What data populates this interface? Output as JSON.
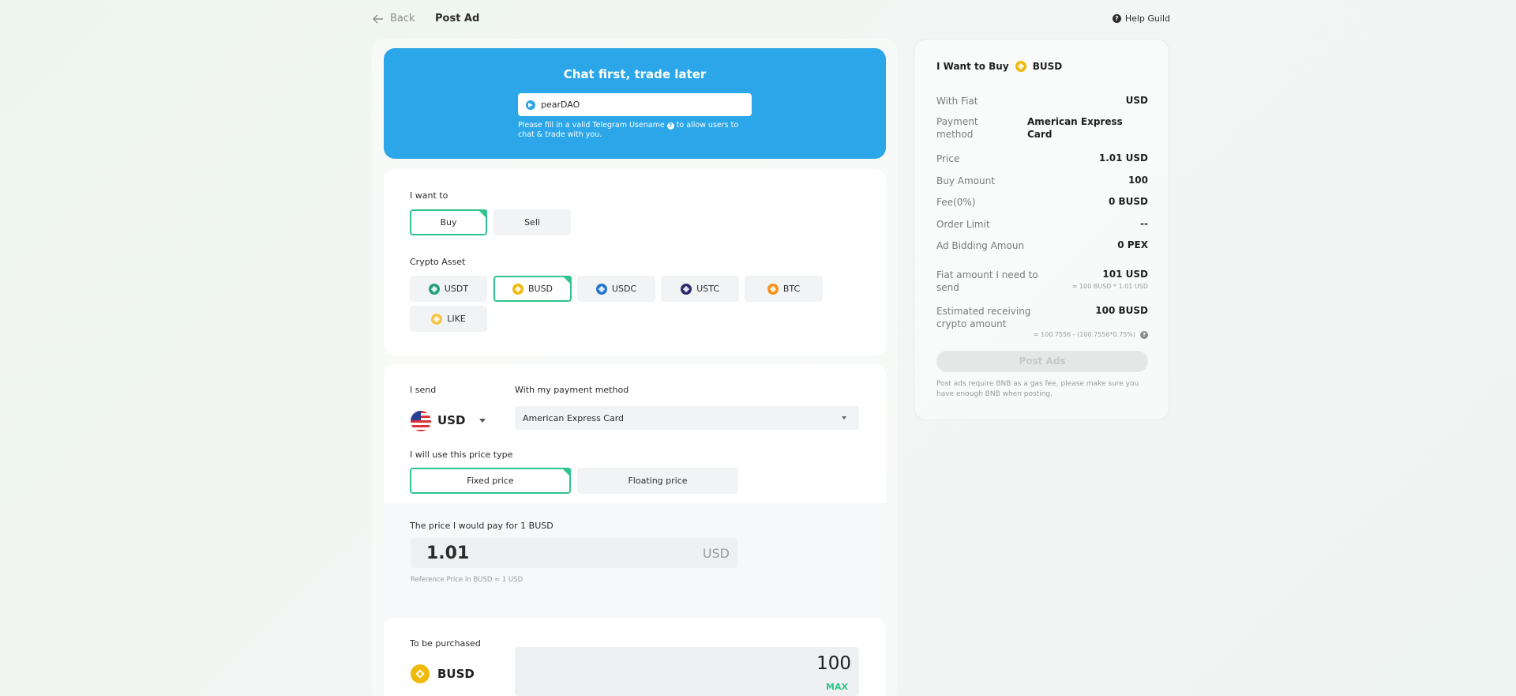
{
  "header": {
    "back_label": "Back",
    "page_title": "Post Ad",
    "help_label": "Help Guild"
  },
  "telegram": {
    "title": "Chat first, trade later",
    "username_value": "pearDAO",
    "help_text_before": "Please fill in a valid Telegram Usename",
    "help_text_after": "to allow users to chat & trade with you."
  },
  "want": {
    "label": "I want to",
    "options": [
      "Buy",
      "Sell"
    ],
    "selected": "Buy"
  },
  "crypto_asset": {
    "label": "Crypto Asset",
    "options": [
      "USDT",
      "BUSD",
      "USDC",
      "USTC",
      "BTC",
      "LIKE"
    ],
    "selected": "BUSD"
  },
  "send": {
    "label": "I send",
    "fiat": "USD",
    "payment_label": "With my payment method",
    "payment_method": "American Express Card"
  },
  "price_type": {
    "label": "I will use this price type",
    "options": [
      "Fixed price",
      "Floating price"
    ],
    "selected": "Fixed price"
  },
  "price": {
    "label": "The price I would pay for 1 BUSD",
    "value": "1.01",
    "unit": "USD",
    "reference": "Reference Price in BUSD  ≈ 1 USD"
  },
  "purchase": {
    "label": "To be purchased",
    "asset": "BUSD",
    "amount": "100",
    "max_label": "MAX"
  },
  "summary": {
    "title_prefix": "I Want to Buy",
    "title_asset": "BUSD",
    "with_fiat_label": "With Fiat",
    "with_fiat_value": "USD",
    "payment_label": "Payment method",
    "payment_value": "American Express Card",
    "price_label": "Price",
    "price_value": "1.01 USD",
    "buy_amount_label": "Buy Amount",
    "buy_amount_value": "100",
    "fee_label": "Fee(0%)",
    "fee_value": "0 BUSD",
    "order_limit_label": "Order Limit",
    "order_limit_value": "--",
    "bidding_label": "Ad Bidding Amoun",
    "bidding_value": "0 PEX",
    "fiat_need_label": "Fiat amount I need to send",
    "fiat_need_value": "101 USD",
    "fiat_need_formula": "≈ 100 BUSD * 1.01 USD",
    "est_label": "Estimated receiving crypto amount",
    "est_value": "100 BUSD",
    "est_formula": "≈ 100.7556 - (100.7556*0.75%)",
    "post_button": "Post Ads",
    "note": "Post ads require BNB as a gas fee, please make sure you have enough BNB when posting."
  },
  "colors": {
    "accent_green": "#2fc48b",
    "telegram_blue": "#2ba6e9"
  }
}
